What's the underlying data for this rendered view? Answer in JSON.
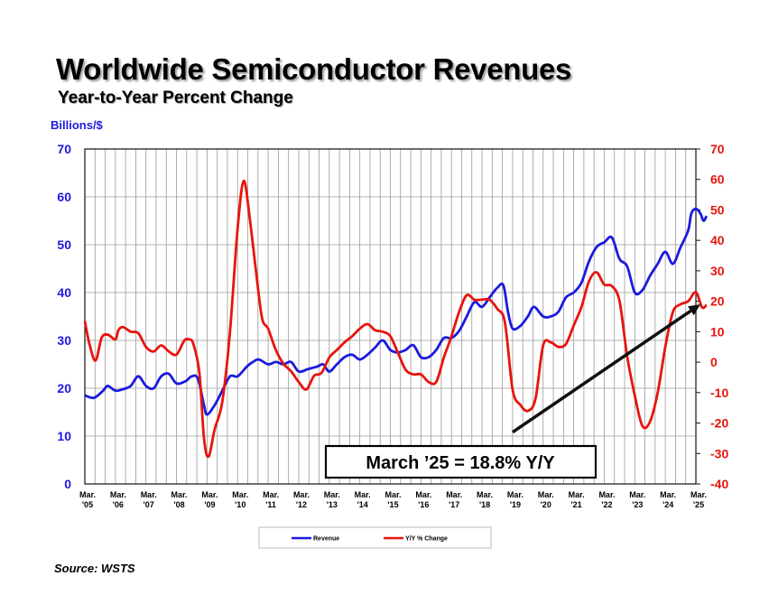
{
  "chart_data": {
    "type": "line",
    "title": "Worldwide Semiconductor Revenues",
    "subtitle": "Year-to-Year Percent Change",
    "ylabel": "Billions/$",
    "source": "Source: WSTS",
    "callout": "March ’25 = 18.8% Y/Y",
    "ylim_left": [
      0,
      70
    ],
    "ylim_right": [
      -40,
      70
    ],
    "yticks_left": [
      "70",
      "60",
      "50",
      "40",
      "30",
      "20",
      "10",
      "0"
    ],
    "yticks_right": [
      "70",
      "60",
      "50",
      "40",
      "30",
      "20",
      "10",
      "0",
      "-10",
      "-20",
      "-30",
      "-40"
    ],
    "x_range": [
      2005.0,
      2025.0
    ],
    "x_ticks": [
      {
        "top": "Mar.",
        "bottom": "'05"
      },
      {
        "top": "Mar.",
        "bottom": "'06"
      },
      {
        "top": "Mar.",
        "bottom": "'07"
      },
      {
        "top": "Mar.",
        "bottom": "'08"
      },
      {
        "top": "Mar.",
        "bottom": "'09"
      },
      {
        "top": "Mar.",
        "bottom": "'10"
      },
      {
        "top": "Mar.",
        "bottom": "'11"
      },
      {
        "top": "Mar.",
        "bottom": "'12"
      },
      {
        "top": "Mar.",
        "bottom": "'13"
      },
      {
        "top": "Mar.",
        "bottom": "'14"
      },
      {
        "top": "Mar.",
        "bottom": "'15"
      },
      {
        "top": "Mar.",
        "bottom": "'16"
      },
      {
        "top": "Mar.",
        "bottom": "'17"
      },
      {
        "top": "Mar.",
        "bottom": "'18"
      },
      {
        "top": "Mar.",
        "bottom": "'19"
      },
      {
        "top": "Mar.",
        "bottom": "'20"
      },
      {
        "top": "Mar.",
        "bottom": "'21"
      },
      {
        "top": "Mar.",
        "bottom": "'22"
      },
      {
        "top": "Mar.",
        "bottom": "'23"
      },
      {
        "top": "Mar.",
        "bottom": "'24"
      },
      {
        "top": "Mar.",
        "bottom": "'25"
      }
    ],
    "legend": [
      "Revenue",
      "Y/Y % Change"
    ],
    "colors": {
      "revenue": "#1a1adf",
      "yoy": "#e8140c",
      "grid": "#9a9a9a",
      "arrow": "#111111"
    },
    "series": [
      {
        "name": "Revenue",
        "axis": "left",
        "points": [
          [
            2005.0,
            18.5
          ],
          [
            2005.3,
            18.0
          ],
          [
            2005.6,
            19.5
          ],
          [
            2005.75,
            20.5
          ],
          [
            2006.0,
            19.5
          ],
          [
            2006.25,
            19.8
          ],
          [
            2006.5,
            20.5
          ],
          [
            2006.75,
            22.5
          ],
          [
            2007.0,
            20.5
          ],
          [
            2007.25,
            20.0
          ],
          [
            2007.5,
            22.5
          ],
          [
            2007.75,
            23.0
          ],
          [
            2008.0,
            21.0
          ],
          [
            2008.3,
            21.5
          ],
          [
            2008.5,
            22.5
          ],
          [
            2008.7,
            22.0
          ],
          [
            2008.9,
            16.5
          ],
          [
            2009.0,
            14.5
          ],
          [
            2009.25,
            16.5
          ],
          [
            2009.5,
            19.5
          ],
          [
            2009.75,
            22.5
          ],
          [
            2010.0,
            22.5
          ],
          [
            2010.3,
            24.5
          ],
          [
            2010.5,
            25.5
          ],
          [
            2010.7,
            26.0
          ],
          [
            2011.0,
            25.0
          ],
          [
            2011.25,
            25.5
          ],
          [
            2011.5,
            25.0
          ],
          [
            2011.75,
            25.5
          ],
          [
            2012.0,
            23.5
          ],
          [
            2012.3,
            24.0
          ],
          [
            2012.6,
            24.5
          ],
          [
            2012.8,
            25.0
          ],
          [
            2013.0,
            23.5
          ],
          [
            2013.25,
            25.0
          ],
          [
            2013.5,
            26.5
          ],
          [
            2013.75,
            27.0
          ],
          [
            2014.0,
            26.0
          ],
          [
            2014.25,
            27.0
          ],
          [
            2014.5,
            28.5
          ],
          [
            2014.75,
            30.0
          ],
          [
            2015.0,
            28.0
          ],
          [
            2015.25,
            27.5
          ],
          [
            2015.5,
            28.0
          ],
          [
            2015.75,
            29.0
          ],
          [
            2016.0,
            26.5
          ],
          [
            2016.25,
            26.5
          ],
          [
            2016.5,
            28.0
          ],
          [
            2016.75,
            30.5
          ],
          [
            2017.0,
            30.5
          ],
          [
            2017.25,
            32.0
          ],
          [
            2017.5,
            35.0
          ],
          [
            2017.75,
            38.0
          ],
          [
            2018.0,
            37.0
          ],
          [
            2018.25,
            39.0
          ],
          [
            2018.5,
            41.0
          ],
          [
            2018.7,
            41.5
          ],
          [
            2018.85,
            36.0
          ],
          [
            2019.0,
            32.5
          ],
          [
            2019.25,
            33.0
          ],
          [
            2019.5,
            35.0
          ],
          [
            2019.7,
            37.0
          ],
          [
            2020.0,
            35.0
          ],
          [
            2020.25,
            35.0
          ],
          [
            2020.5,
            36.0
          ],
          [
            2020.75,
            39.0
          ],
          [
            2021.0,
            40.0
          ],
          [
            2021.25,
            42.0
          ],
          [
            2021.5,
            46.5
          ],
          [
            2021.75,
            49.5
          ],
          [
            2022.0,
            50.5
          ],
          [
            2022.25,
            51.5
          ],
          [
            2022.5,
            47.0
          ],
          [
            2022.75,
            45.5
          ],
          [
            2023.0,
            40.0
          ],
          [
            2023.25,
            40.5
          ],
          [
            2023.5,
            43.5
          ],
          [
            2023.75,
            46.0
          ],
          [
            2024.0,
            48.5
          ],
          [
            2024.25,
            46.0
          ],
          [
            2024.5,
            49.5
          ],
          [
            2024.75,
            53.0
          ],
          [
            2024.85,
            56.5
          ],
          [
            2025.0,
            57.5
          ],
          [
            2025.15,
            56.5
          ],
          [
            2025.25,
            55.0
          ],
          [
            2025.35,
            56.0
          ]
        ]
      },
      {
        "name": "Y/Y % Change",
        "axis": "right",
        "points": [
          [
            2005.0,
            13.5
          ],
          [
            2005.15,
            6.0
          ],
          [
            2005.35,
            0.5
          ],
          [
            2005.55,
            8.0
          ],
          [
            2005.75,
            9.0
          ],
          [
            2006.0,
            7.5
          ],
          [
            2006.1,
            10.5
          ],
          [
            2006.25,
            11.5
          ],
          [
            2006.5,
            10.0
          ],
          [
            2006.75,
            9.5
          ],
          [
            2007.0,
            5.0
          ],
          [
            2007.25,
            3.5
          ],
          [
            2007.5,
            5.5
          ],
          [
            2007.75,
            3.5
          ],
          [
            2008.0,
            2.5
          ],
          [
            2008.25,
            7.0
          ],
          [
            2008.4,
            7.5
          ],
          [
            2008.55,
            6.0
          ],
          [
            2008.75,
            -3.5
          ],
          [
            2008.9,
            -25.0
          ],
          [
            2009.05,
            -31.0
          ],
          [
            2009.25,
            -22.0
          ],
          [
            2009.5,
            -13.0
          ],
          [
            2009.75,
            10.0
          ],
          [
            2010.0,
            44.0
          ],
          [
            2010.2,
            59.5
          ],
          [
            2010.4,
            47.0
          ],
          [
            2010.6,
            30.0
          ],
          [
            2010.8,
            14.5
          ],
          [
            2011.0,
            11.0
          ],
          [
            2011.25,
            4.0
          ],
          [
            2011.5,
            -0.5
          ],
          [
            2011.75,
            -3.0
          ],
          [
            2012.0,
            -6.5
          ],
          [
            2012.25,
            -9.0
          ],
          [
            2012.5,
            -4.5
          ],
          [
            2012.75,
            -3.5
          ],
          [
            2013.0,
            1.5
          ],
          [
            2013.25,
            4.0
          ],
          [
            2013.5,
            6.5
          ],
          [
            2013.75,
            8.5
          ],
          [
            2014.0,
            11.0
          ],
          [
            2014.25,
            12.5
          ],
          [
            2014.5,
            10.5
          ],
          [
            2014.75,
            10.0
          ],
          [
            2015.0,
            8.5
          ],
          [
            2015.25,
            3.0
          ],
          [
            2015.5,
            -2.5
          ],
          [
            2015.75,
            -4.0
          ],
          [
            2016.0,
            -4.0
          ],
          [
            2016.25,
            -6.5
          ],
          [
            2016.5,
            -6.5
          ],
          [
            2016.75,
            1.5
          ],
          [
            2017.0,
            8.5
          ],
          [
            2017.25,
            16.5
          ],
          [
            2017.5,
            22.0
          ],
          [
            2017.75,
            20.5
          ],
          [
            2018.0,
            20.5
          ],
          [
            2018.25,
            20.5
          ],
          [
            2018.5,
            17.5
          ],
          [
            2018.75,
            13.0
          ],
          [
            2019.0,
            -9.0
          ],
          [
            2019.25,
            -14.0
          ],
          [
            2019.5,
            -16.0
          ],
          [
            2019.75,
            -12.0
          ],
          [
            2020.0,
            5.5
          ],
          [
            2020.25,
            6.5
          ],
          [
            2020.5,
            5.0
          ],
          [
            2020.75,
            6.0
          ],
          [
            2021.0,
            12.0
          ],
          [
            2021.25,
            18.0
          ],
          [
            2021.5,
            26.5
          ],
          [
            2021.75,
            29.5
          ],
          [
            2022.0,
            25.5
          ],
          [
            2022.25,
            25.0
          ],
          [
            2022.5,
            20.0
          ],
          [
            2022.75,
            2.0
          ],
          [
            2023.0,
            -11.0
          ],
          [
            2023.25,
            -21.0
          ],
          [
            2023.5,
            -19.5
          ],
          [
            2023.75,
            -10.0
          ],
          [
            2024.0,
            5.0
          ],
          [
            2024.25,
            16.5
          ],
          [
            2024.5,
            19.0
          ],
          [
            2024.75,
            20.0
          ],
          [
            2025.0,
            23.0
          ],
          [
            2025.2,
            18.0
          ],
          [
            2025.35,
            18.8
          ]
        ]
      }
    ],
    "annotation_arrow": {
      "from": [
        2019.0,
        -23.0
      ],
      "to": [
        2025.15,
        19.0
      ]
    }
  }
}
